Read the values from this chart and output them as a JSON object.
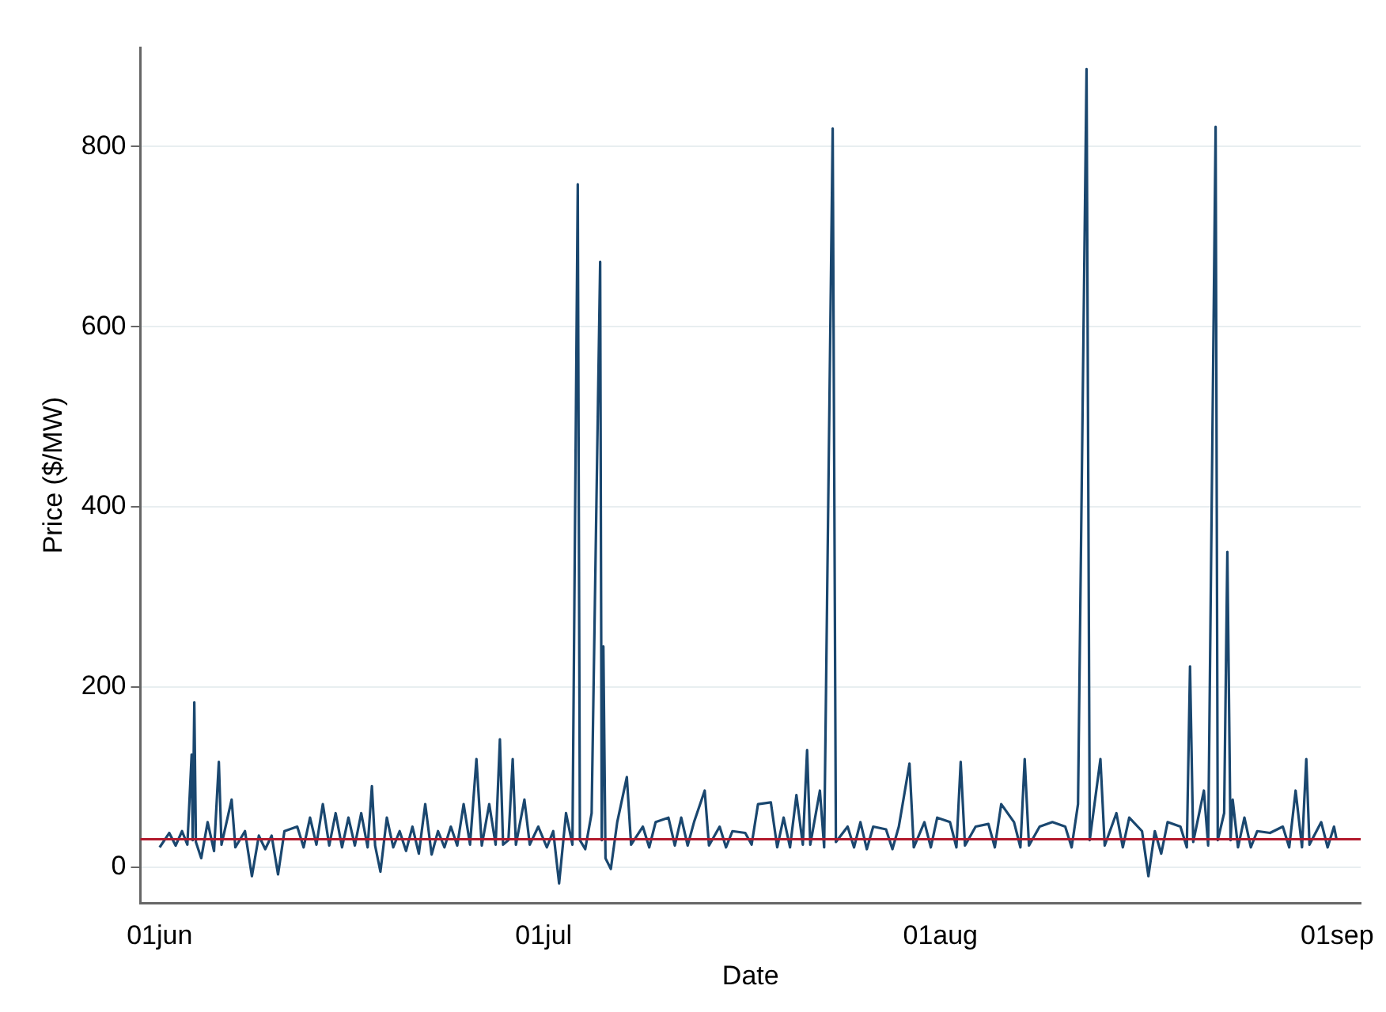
{
  "chart_data": {
    "type": "line",
    "xlabel": "Date",
    "ylabel": "Price ($/MW)",
    "color": "#1a476f",
    "grid": "y",
    "legend": false,
    "marker": "none",
    "xlim": [
      "--05-30T12:00",
      "--09-02T20:00"
    ],
    "xticks": [
      {
        "value": "--06-01",
        "label": "01jun"
      },
      {
        "value": "--07-01",
        "label": "01jul"
      },
      {
        "value": "--08-01",
        "label": "01aug"
      },
      {
        "value": "--09-01",
        "label": "01sep"
      }
    ],
    "ylim": [
      -40,
      910
    ],
    "yticks": [
      0,
      200,
      400,
      600,
      800
    ],
    "ref_lines": [
      {
        "axis": "y",
        "value": 31,
        "color": "#b2182b"
      }
    ],
    "x": [
      "--06-01T00:00",
      "--06-01T18:00",
      "--06-02T06:00",
      "--06-02T18:00",
      "--06-03T04:00",
      "--06-03T12:00",
      "--06-03T14:00",
      "--06-03T17:00",
      "--06-03T20:00",
      "--06-04T06:00",
      "--06-04T18:00",
      "--06-05T06:00",
      "--06-05T15:00",
      "--06-05T20:00",
      "--06-06T15:00",
      "--06-06T22:00",
      "--06-07T16:00",
      "--06-08T05:00",
      "--06-08T18:00",
      "--06-09T06:00",
      "--06-09T18:00",
      "--06-10T06:00",
      "--06-10T18:00",
      "--06-11T18:00",
      "--06-12T06:00",
      "--06-12T18:00",
      "--06-13T06:00",
      "--06-13T18:00",
      "--06-14T06:00",
      "--06-14T18:00",
      "--06-15T06:00",
      "--06-15T18:00",
      "--06-16T06:00",
      "--06-16T18:00",
      "--06-17T06:00",
      "--06-17T14:00",
      "--06-17T20:00",
      "--06-18T06:00",
      "--06-18T18:00",
      "--06-19T06:00",
      "--06-19T18:00",
      "--06-20T06:00",
      "--06-20T18:00",
      "--06-21T06:00",
      "--06-21T18:00",
      "--06-22T06:00",
      "--06-22T18:00",
      "--06-23T06:00",
      "--06-23T18:00",
      "--06-24T06:00",
      "--06-24T18:00",
      "--06-25T06:00",
      "--06-25T18:00",
      "--06-26T04:00",
      "--06-26T18:00",
      "--06-27T06:00",
      "--06-27T14:00",
      "--06-27T20:00",
      "--06-28T06:00",
      "--06-28T14:00",
      "--06-28T20:00",
      "--06-29T12:00",
      "--06-29T22:00",
      "--06-30T14:00",
      "--07-01T06:00",
      "--07-01T18:00",
      "--07-02T05:00",
      "--07-02T18:00",
      "--07-03T06:00",
      "--07-03T16:00",
      "--07-03T20:00",
      "--07-04T06:00",
      "--07-04T18:00",
      "--07-05T10:00",
      "--07-05T13:00",
      "--07-05T16:00",
      "--07-05T20:00",
      "--07-06T06:00",
      "--07-06T18:00",
      "--07-07T12:00",
      "--07-07T20:00",
      "--07-08T18:00",
      "--07-09T06:00",
      "--07-09T18:00",
      "--07-10T18:00",
      "--07-11T06:00",
      "--07-11T18:00",
      "--07-12T06:00",
      "--07-12T18:00",
      "--07-13T14:00",
      "--07-13T22:00",
      "--07-14T18:00",
      "--07-15T06:00",
      "--07-15T18:00",
      "--07-16T18:00",
      "--07-17T06:00",
      "--07-17T18:00",
      "--07-18T18:00",
      "--07-19T06:00",
      "--07-19T18:00",
      "--07-20T06:00",
      "--07-20T18:00",
      "--07-21T06:00",
      "--07-21T14:00",
      "--07-21T20:00",
      "--07-22T14:00",
      "--07-22T22:00",
      "--07-23T14:00",
      "--07-23T20:00",
      "--07-24T18:00",
      "--07-25T06:00",
      "--07-25T18:00",
      "--07-26T06:00",
      "--07-26T18:00",
      "--07-27T18:00",
      "--07-28T06:00",
      "--07-28T18:00",
      "--07-29T14:00",
      "--07-29T22:00",
      "--07-30T18:00",
      "--07-31T06:00",
      "--07-31T18:00",
      "--08-01T18:00",
      "--08-02T06:00",
      "--08-02T14:00",
      "--08-02T22:00",
      "--08-03T18:00",
      "--08-04T18:00",
      "--08-05T06:00",
      "--08-05T18:00",
      "--08-06T18:00",
      "--08-07T06:00",
      "--08-07T14:00",
      "--08-07T22:00",
      "--08-08T18:00",
      "--08-09T18:00",
      "--08-10T18:00",
      "--08-11T06:00",
      "--08-11T18:00",
      "--08-12T10:00",
      "--08-12T16:00",
      "--08-13T12:00",
      "--08-13T20:00",
      "--08-14T18:00",
      "--08-15T06:00",
      "--08-15T18:00",
      "--08-16T18:00",
      "--08-17T06:00",
      "--08-17T18:00",
      "--08-18T06:00",
      "--08-18T18:00",
      "--08-19T18:00",
      "--08-20T06:00",
      "--08-20T12:00",
      "--08-20T18:00",
      "--08-21T14:00",
      "--08-21T22:00",
      "--08-22T12:00",
      "--08-22T16:00",
      "--08-23T04:00",
      "--08-23T10:00",
      "--08-23T16:00",
      "--08-23T20:00",
      "--08-24T06:00",
      "--08-24T18:00",
      "--08-25T06:00",
      "--08-25T18:00",
      "--08-26T18:00",
      "--08-27T18:00",
      "--08-28T06:00",
      "--08-28T18:00",
      "--08-29T06:00",
      "--08-29T14:00",
      "--08-29T20:00",
      "--08-30T18:00",
      "--08-31T06:00",
      "--08-31T18:00",
      "--08-31T23:00"
    ],
    "values": [
      22,
      38,
      24,
      40,
      25,
      125,
      30,
      183,
      28,
      10,
      50,
      18,
      117,
      25,
      75,
      22,
      40,
      -10,
      35,
      20,
      35,
      -8,
      40,
      45,
      22,
      55,
      25,
      70,
      24,
      60,
      22,
      55,
      24,
      60,
      22,
      90,
      24,
      -5,
      55,
      22,
      40,
      18,
      45,
      15,
      70,
      14,
      40,
      22,
      45,
      24,
      70,
      25,
      120,
      24,
      70,
      25,
      142,
      25,
      30,
      120,
      25,
      75,
      25,
      45,
      22,
      40,
      -18,
      60,
      25,
      758,
      30,
      20,
      60,
      672,
      30,
      245,
      10,
      -2,
      50,
      100,
      25,
      45,
      22,
      50,
      55,
      24,
      55,
      24,
      50,
      85,
      24,
      45,
      22,
      40,
      38,
      25,
      70,
      72,
      22,
      55,
      22,
      80,
      25,
      130,
      25,
      85,
      22,
      820,
      28,
      45,
      22,
      50,
      20,
      45,
      42,
      20,
      45,
      115,
      22,
      50,
      22,
      55,
      50,
      22,
      117,
      24,
      45,
      48,
      22,
      70,
      50,
      22,
      120,
      24,
      45,
      50,
      45,
      22,
      70,
      886,
      30,
      120,
      24,
      60,
      22,
      55,
      40,
      -10,
      40,
      15,
      50,
      45,
      22,
      223,
      28,
      85,
      24,
      822,
      30,
      60,
      350,
      30,
      75,
      22,
      55,
      22,
      40,
      38,
      45,
      22,
      85,
      22,
      120,
      25,
      50,
      22,
      45,
      30
    ]
  }
}
